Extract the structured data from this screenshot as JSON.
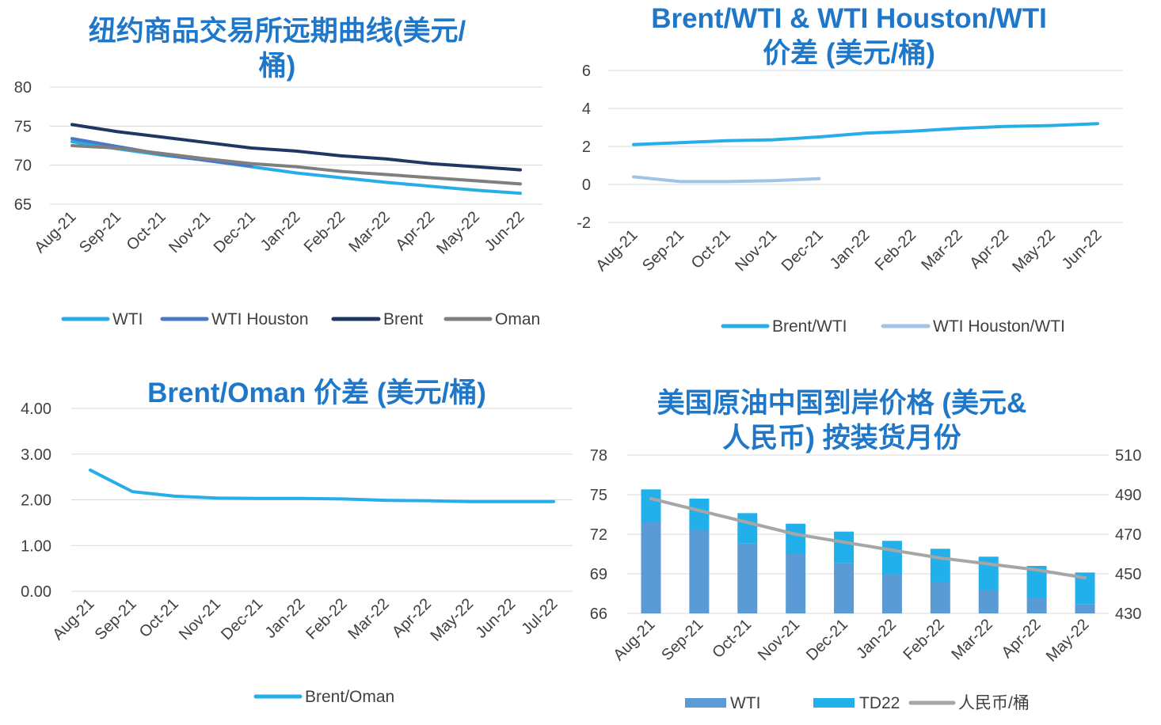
{
  "chart_data": [
    {
      "type": "line",
      "title_lines": [
        "纽约商品交易所远期曲线(美元/",
        "桶)"
      ],
      "categories": [
        "Aug-21",
        "Sep-21",
        "Oct-21",
        "Nov-21",
        "Dec-21",
        "Jan-22",
        "Feb-22",
        "Mar-22",
        "Apr-22",
        "May-22",
        "Jun-22"
      ],
      "ylim": [
        65,
        80
      ],
      "yticks": [
        "65",
        "70",
        "75",
        "80"
      ],
      "grid": true,
      "legend": "bottom",
      "series": [
        {
          "name": "WTI",
          "color": "#27aee8",
          "values": [
            73.0,
            72.1,
            71.3,
            70.6,
            69.8,
            69.0,
            68.4,
            67.8,
            67.3,
            66.8,
            66.4
          ]
        },
        {
          "name": "WTI Houston",
          "color": "#4a78c4",
          "values": [
            73.4,
            72.4,
            71.4,
            70.6,
            69.9,
            null,
            null,
            null,
            null,
            null,
            null
          ]
        },
        {
          "name": "Brent",
          "color": "#1f3763",
          "values": [
            75.2,
            74.3,
            73.6,
            72.9,
            72.2,
            71.8,
            71.2,
            70.8,
            70.2,
            69.8,
            69.4
          ]
        },
        {
          "name": "Oman",
          "color": "#7f7f7f",
          "values": [
            72.5,
            72.2,
            71.5,
            70.8,
            70.2,
            69.8,
            69.2,
            68.8,
            68.4,
            68.0,
            67.6
          ]
        }
      ]
    },
    {
      "type": "line",
      "title_lines": [
        "Brent/WTI & WTI Houston/WTI",
        "价差 (美元/桶)"
      ],
      "categories": [
        "Aug-21",
        "Sep-21",
        "Oct-21",
        "Nov-21",
        "Dec-21",
        "Jan-22",
        "Feb-22",
        "Mar-22",
        "Apr-22",
        "May-22",
        "Jun-22"
      ],
      "ylim": [
        -2,
        6
      ],
      "yticks": [
        "-2",
        "0",
        "2",
        "4",
        "6"
      ],
      "grid": true,
      "legend": "bottom",
      "series": [
        {
          "name": "Brent/WTI",
          "color": "#27aee8",
          "values": [
            2.1,
            2.2,
            2.3,
            2.35,
            2.5,
            2.7,
            2.8,
            2.95,
            3.05,
            3.1,
            3.2
          ]
        },
        {
          "name": "WTI Houston/WTI",
          "color": "#9fc4e6",
          "values": [
            0.4,
            0.15,
            0.15,
            0.2,
            0.3,
            null,
            null,
            null,
            null,
            null,
            null
          ]
        }
      ]
    },
    {
      "type": "line",
      "title_lines": [
        "Brent/Oman 价差 (美元/桶)"
      ],
      "categories": [
        "Aug-21",
        "Sep-21",
        "Oct-21",
        "Nov-21",
        "Dec-21",
        "Jan-22",
        "Feb-22",
        "Mar-22",
        "Apr-22",
        "May-22",
        "Jun-22",
        "Jul-22"
      ],
      "ylim": [
        0,
        4
      ],
      "yticks": [
        "0.00",
        "1.00",
        "2.00",
        "3.00",
        "4.00"
      ],
      "grid": true,
      "legend": "bottom",
      "series": [
        {
          "name": "Brent/Oman",
          "color": "#27aee8",
          "values": [
            2.65,
            2.18,
            2.08,
            2.04,
            2.03,
            2.03,
            2.02,
            1.99,
            1.98,
            1.96,
            1.96,
            1.96
          ]
        }
      ]
    },
    {
      "type": "bar",
      "stacked": true,
      "title_lines": [
        "美国原油中国到岸价格 (美元&",
        "人民币) 按装货月份"
      ],
      "categories": [
        "Aug-21",
        "Sep-21",
        "Oct-21",
        "Nov-21",
        "Dec-21",
        "Jan-22",
        "Feb-22",
        "Mar-22",
        "Apr-22",
        "May-22"
      ],
      "ylim": [
        66,
        78
      ],
      "yticks": [
        "66",
        "69",
        "72",
        "75",
        "78"
      ],
      "y2lim": [
        430,
        510
      ],
      "y2ticks": [
        "430",
        "450",
        "470",
        "490",
        "510"
      ],
      "grid": true,
      "legend": "bottom",
      "series": [
        {
          "name": "WTI",
          "type": "bar",
          "color": "#5b9bd5",
          "values": [
            72.9,
            72.3,
            71.3,
            70.5,
            69.8,
            69.0,
            68.4,
            67.8,
            67.2,
            66.7
          ]
        },
        {
          "name": "TD22",
          "type": "bar",
          "color": "#22b0ea",
          "values": [
            2.5,
            2.4,
            2.3,
            2.3,
            2.4,
            2.5,
            2.5,
            2.5,
            2.4,
            2.4
          ]
        },
        {
          "name": "人民币/桶",
          "type": "line",
          "axis": "secondary",
          "color": "#a6a6a6",
          "values": [
            488,
            482,
            476,
            470,
            466,
            462,
            458,
            455,
            452,
            448
          ]
        }
      ]
    }
  ]
}
